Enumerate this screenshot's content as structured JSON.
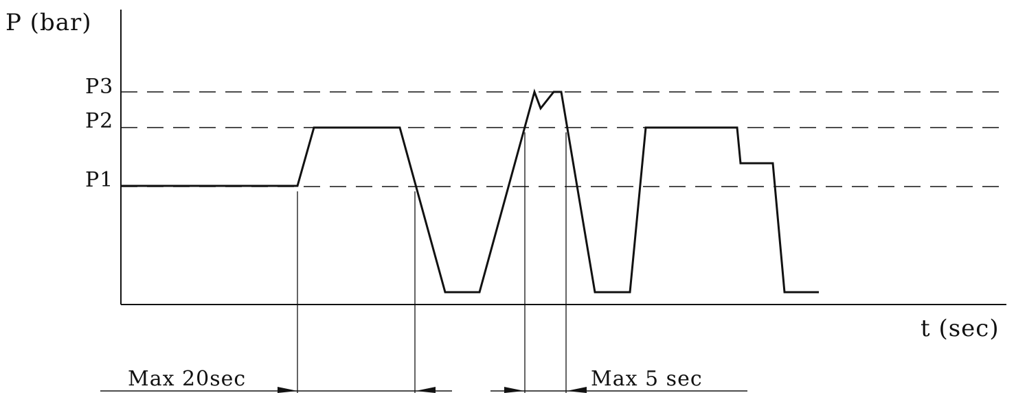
{
  "diagram": {
    "y_axis_label": "P (bar)",
    "x_axis_label": "t (sec)",
    "levels": [
      {
        "key": "P1",
        "label": "P1"
      },
      {
        "key": "P2",
        "label": "P2"
      },
      {
        "key": "P3",
        "label": "P3"
      }
    ],
    "dimensions": {
      "max_20": "Max 20sec",
      "max_5": "Max 5 sec"
    },
    "line_color": "#111111"
  }
}
